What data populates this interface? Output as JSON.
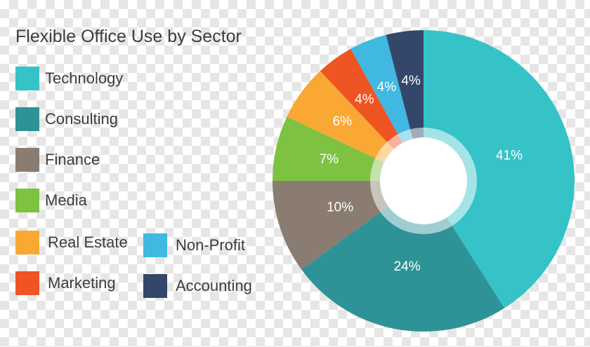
{
  "chart_data": {
    "type": "pie",
    "title": "Flexible Office Use by Sector",
    "categories": [
      "Technology",
      "Consulting",
      "Finance",
      "Media",
      "Real Estate",
      "Marketing",
      "Non-Profit",
      "Accounting"
    ],
    "values": [
      41,
      24,
      10,
      7,
      6,
      4,
      4,
      4
    ],
    "data_labels": [
      "41%",
      "24%",
      "10%",
      "7%",
      "6%",
      "4%",
      "4%",
      "4%"
    ],
    "colors": [
      "#35c3c8",
      "#2e9397",
      "#8a7c70",
      "#7ec242",
      "#f9a834",
      "#ef5423",
      "#40b8e2",
      "#34476a"
    ],
    "legend_position": "left",
    "donut": true,
    "start": "top",
    "direction": "clockwise"
  }
}
